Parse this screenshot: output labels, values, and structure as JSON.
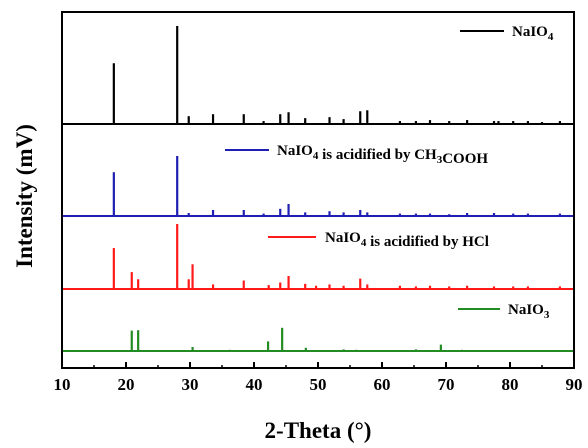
{
  "chart_data": {
    "type": "line",
    "xlabel": "2-Theta (°)",
    "ylabel": "Intensity (mV)",
    "xlim": [
      10,
      90
    ],
    "xticks": [
      "10",
      "20",
      "30",
      "40",
      "50",
      "60",
      "70",
      "80",
      "90"
    ],
    "grid": false,
    "legend": "per-series, right side",
    "series": [
      {
        "name": "NaIO4",
        "label_main": "NaIO",
        "label_sub": "4",
        "label_rest": "",
        "color": "#000000",
        "peaks": [
          [
            18.1,
            0.62
          ],
          [
            28.0,
            1.0
          ],
          [
            29.8,
            0.08
          ],
          [
            33.6,
            0.1
          ],
          [
            38.4,
            0.1
          ],
          [
            41.5,
            0.03
          ],
          [
            44.1,
            0.1
          ],
          [
            45.4,
            0.12
          ],
          [
            48.0,
            0.06
          ],
          [
            51.8,
            0.07
          ],
          [
            54.0,
            0.05
          ],
          [
            56.6,
            0.13
          ],
          [
            57.7,
            0.14
          ],
          [
            62.8,
            0.03
          ],
          [
            65.3,
            0.03
          ],
          [
            67.5,
            0.04
          ],
          [
            70.5,
            0.03
          ],
          [
            73.3,
            0.04
          ],
          [
            77.5,
            0.03
          ],
          [
            78.2,
            0.03
          ],
          [
            80.5,
            0.03
          ],
          [
            82.8,
            0.03
          ],
          [
            85.0,
            0.02
          ],
          [
            87.8,
            0.03
          ]
        ]
      },
      {
        "name": "NaIO4 is acidified by CH3COOH",
        "label_main": "NaIO",
        "label_sub": "4",
        "label_rest": " is acidified by CH",
        "label_sub2": "3",
        "label_rest2": "COOH",
        "color": "#1f1fb4",
        "peaks": [
          [
            18.1,
            0.73
          ],
          [
            28.0,
            1.0
          ],
          [
            29.8,
            0.05
          ],
          [
            33.6,
            0.1
          ],
          [
            38.4,
            0.1
          ],
          [
            41.5,
            0.04
          ],
          [
            44.1,
            0.12
          ],
          [
            45.4,
            0.2
          ],
          [
            48.0,
            0.06
          ],
          [
            51.8,
            0.08
          ],
          [
            54.0,
            0.06
          ],
          [
            56.6,
            0.1
          ],
          [
            57.7,
            0.06
          ],
          [
            62.8,
            0.04
          ],
          [
            65.3,
            0.04
          ],
          [
            67.5,
            0.04
          ],
          [
            70.5,
            0.03
          ],
          [
            73.3,
            0.05
          ],
          [
            77.5,
            0.05
          ],
          [
            80.5,
            0.04
          ],
          [
            82.8,
            0.04
          ],
          [
            87.8,
            0.04
          ]
        ]
      },
      {
        "name": "NaIO4 is acidified by HCl",
        "label_main": "NaIO",
        "label_sub": "4",
        "label_rest": " is acidified by HCl",
        "color": "#ff1a1a",
        "peaks": [
          [
            18.1,
            0.63
          ],
          [
            20.9,
            0.26
          ],
          [
            21.9,
            0.15
          ],
          [
            28.0,
            1.0
          ],
          [
            29.8,
            0.15
          ],
          [
            30.4,
            0.38
          ],
          [
            33.6,
            0.07
          ],
          [
            38.4,
            0.13
          ],
          [
            42.3,
            0.06
          ],
          [
            44.1,
            0.1
          ],
          [
            45.4,
            0.2
          ],
          [
            48.0,
            0.08
          ],
          [
            49.7,
            0.05
          ],
          [
            51.8,
            0.07
          ],
          [
            54.0,
            0.05
          ],
          [
            56.6,
            0.16
          ],
          [
            57.7,
            0.07
          ],
          [
            62.8,
            0.05
          ],
          [
            65.3,
            0.04
          ],
          [
            67.5,
            0.05
          ],
          [
            70.5,
            0.04
          ],
          [
            73.3,
            0.05
          ],
          [
            77.5,
            0.04
          ],
          [
            80.5,
            0.04
          ],
          [
            82.8,
            0.04
          ],
          [
            87.8,
            0.04
          ]
        ]
      },
      {
        "name": "NaIO3",
        "label_main": "NaIO",
        "label_sub": "3",
        "label_rest": "",
        "color": "#228b22",
        "peaks": [
          [
            20.9,
            0.51
          ],
          [
            21.9,
            0.52
          ],
          [
            30.4,
            0.1
          ],
          [
            36.2,
            0.03
          ],
          [
            42.2,
            0.24
          ],
          [
            44.4,
            0.58
          ],
          [
            48.1,
            0.08
          ],
          [
            54.0,
            0.04
          ],
          [
            56.0,
            0.03
          ],
          [
            65.3,
            0.04
          ],
          [
            69.2,
            0.16
          ],
          [
            72.5,
            0.03
          ]
        ]
      }
    ]
  }
}
